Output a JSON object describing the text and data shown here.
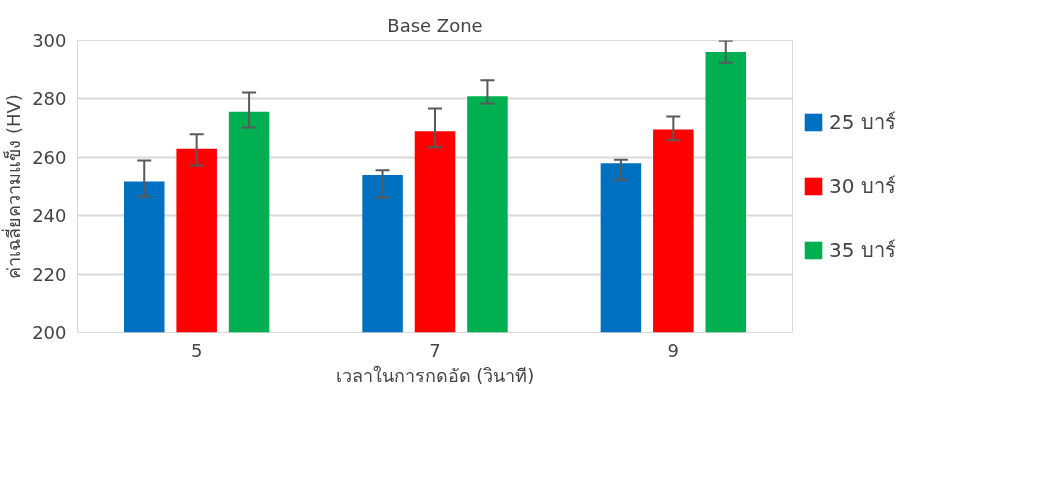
{
  "chart_data": {
    "type": "bar",
    "title": "Base Zone",
    "xlabel": "เวลาในการกดอัด (วินาที)",
    "ylabel": "ค่าเฉลี่ยความแข็ง (HV)",
    "categories": [
      "5",
      "7",
      "9"
    ],
    "series": [
      {
        "name": "25 บาร์",
        "color": "#0070c0",
        "values": [
          251.7,
          253.9,
          258.0
        ],
        "errors": [
          [
            246.6,
            258.9
          ],
          [
            246.2,
            255.6
          ],
          [
            252.3,
            259.2
          ]
        ]
      },
      {
        "name": "30 บาร์",
        "color": "#ff0000",
        "values": [
          262.9,
          268.9,
          269.5
        ],
        "errors": [
          [
            257.2,
            267.9
          ],
          [
            263.4,
            276.7
          ],
          [
            265.8,
            274.0
          ]
        ]
      },
      {
        "name": "35 บาร์",
        "color": "#00b050",
        "values": [
          275.6,
          280.9,
          296.1
        ],
        "errors": [
          [
            270.2,
            282.2
          ],
          [
            278.4,
            286.4
          ],
          [
            292.4,
            299.9
          ]
        ]
      }
    ],
    "ylim": [
      200,
      300
    ],
    "yticks": [
      200,
      220,
      240,
      260,
      280,
      300
    ],
    "grid": "y",
    "legend": "right"
  }
}
